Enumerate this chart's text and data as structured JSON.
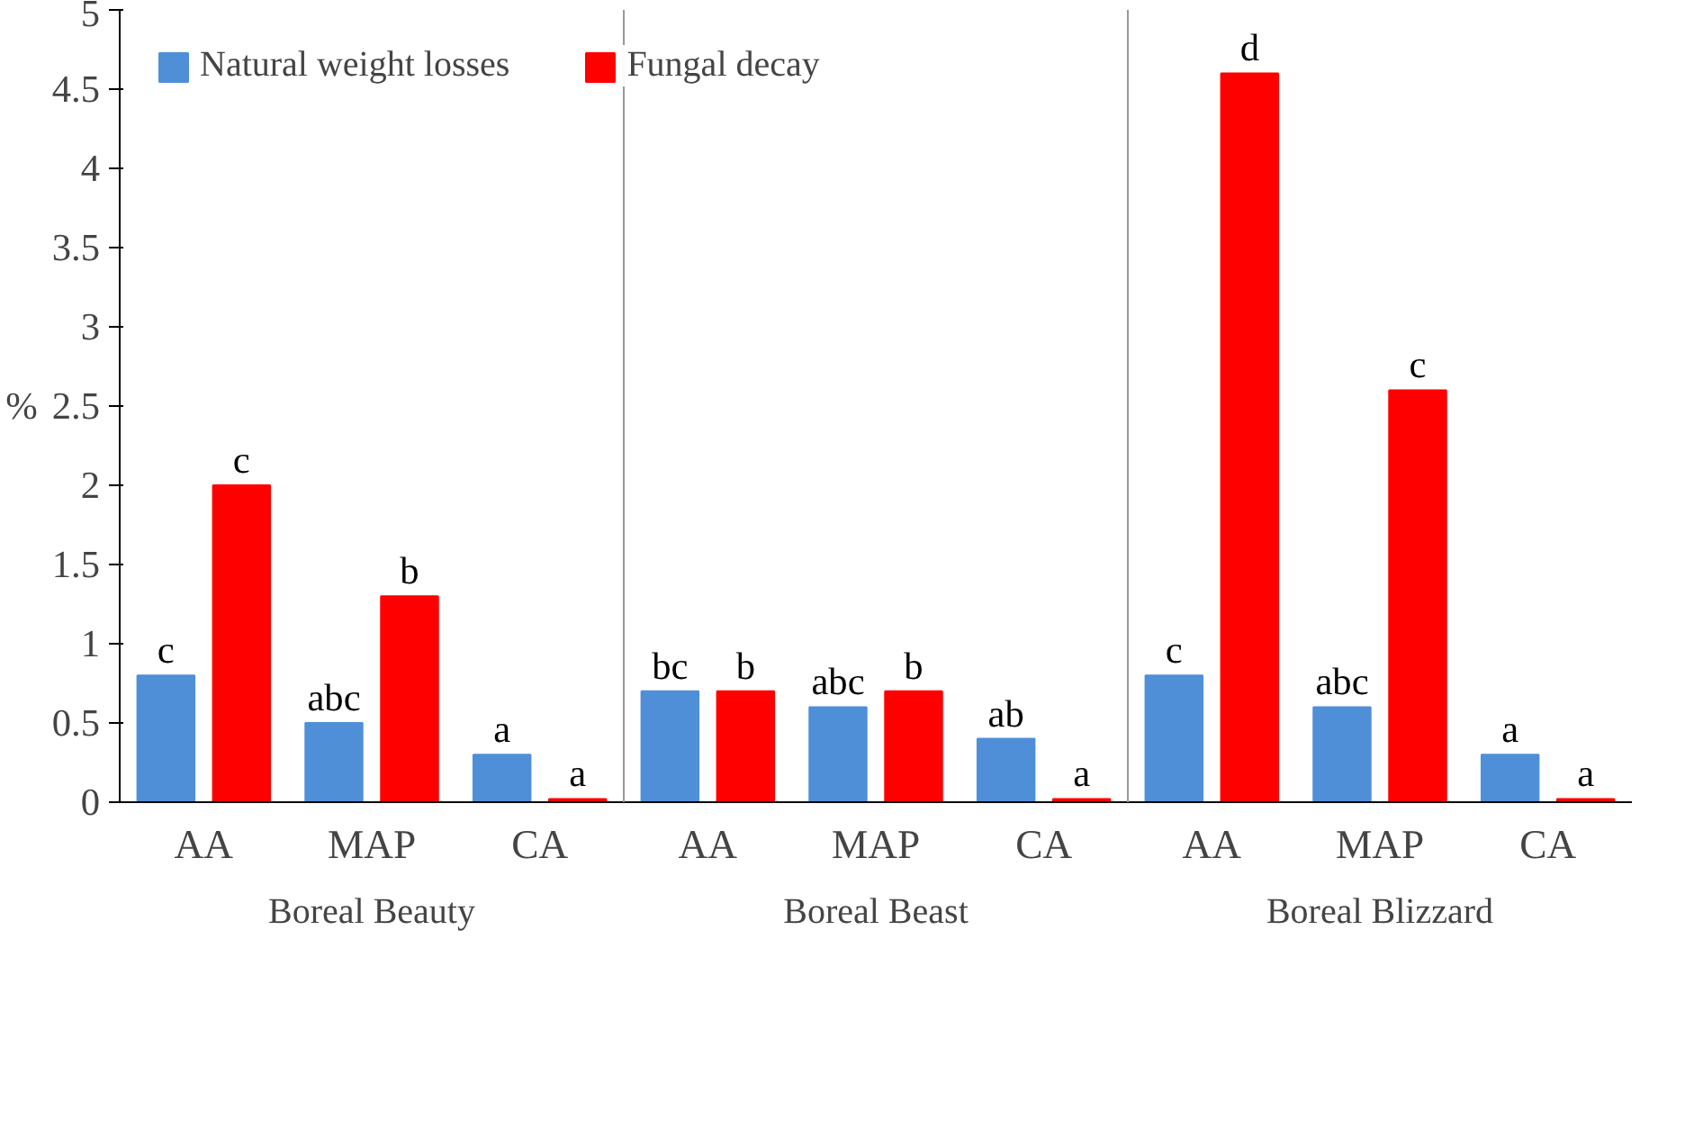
{
  "chart_data": {
    "type": "bar",
    "ylabel": "%",
    "categories": [
      "AA",
      "MAP",
      "CA",
      "AA",
      "MAP",
      "CA",
      "AA",
      "MAP",
      "CA"
    ],
    "annotations": [
      "Boreal Beauty",
      "Boreal Beast",
      "Boreal Blizzard"
    ],
    "series": [
      {
        "name": "Natural weight losses",
        "color": "#4f8fd8",
        "values": [
          0.8,
          0.5,
          0.3,
          0.7,
          0.6,
          0.4,
          0.8,
          0.6,
          0.3
        ],
        "value_labels": [
          "c",
          "abc",
          "a",
          "bc",
          "abc",
          "ab",
          "c",
          "abc",
          "a"
        ]
      },
      {
        "name": "Fungal decay",
        "color": "#ff0000",
        "values": [
          2.0,
          1.3,
          0.02,
          0.7,
          0.7,
          0.02,
          4.6,
          2.6,
          0.02
        ],
        "value_labels": [
          "c",
          "b",
          "a",
          "b",
          "b",
          "a",
          "d",
          "c",
          "a"
        ]
      }
    ],
    "ylim": [
      0,
      5
    ],
    "yticks": [
      0,
      0.5,
      1,
      1.5,
      2,
      2.5,
      3,
      3.5,
      4,
      4.5,
      5
    ],
    "grid": false,
    "legend": "top left"
  }
}
